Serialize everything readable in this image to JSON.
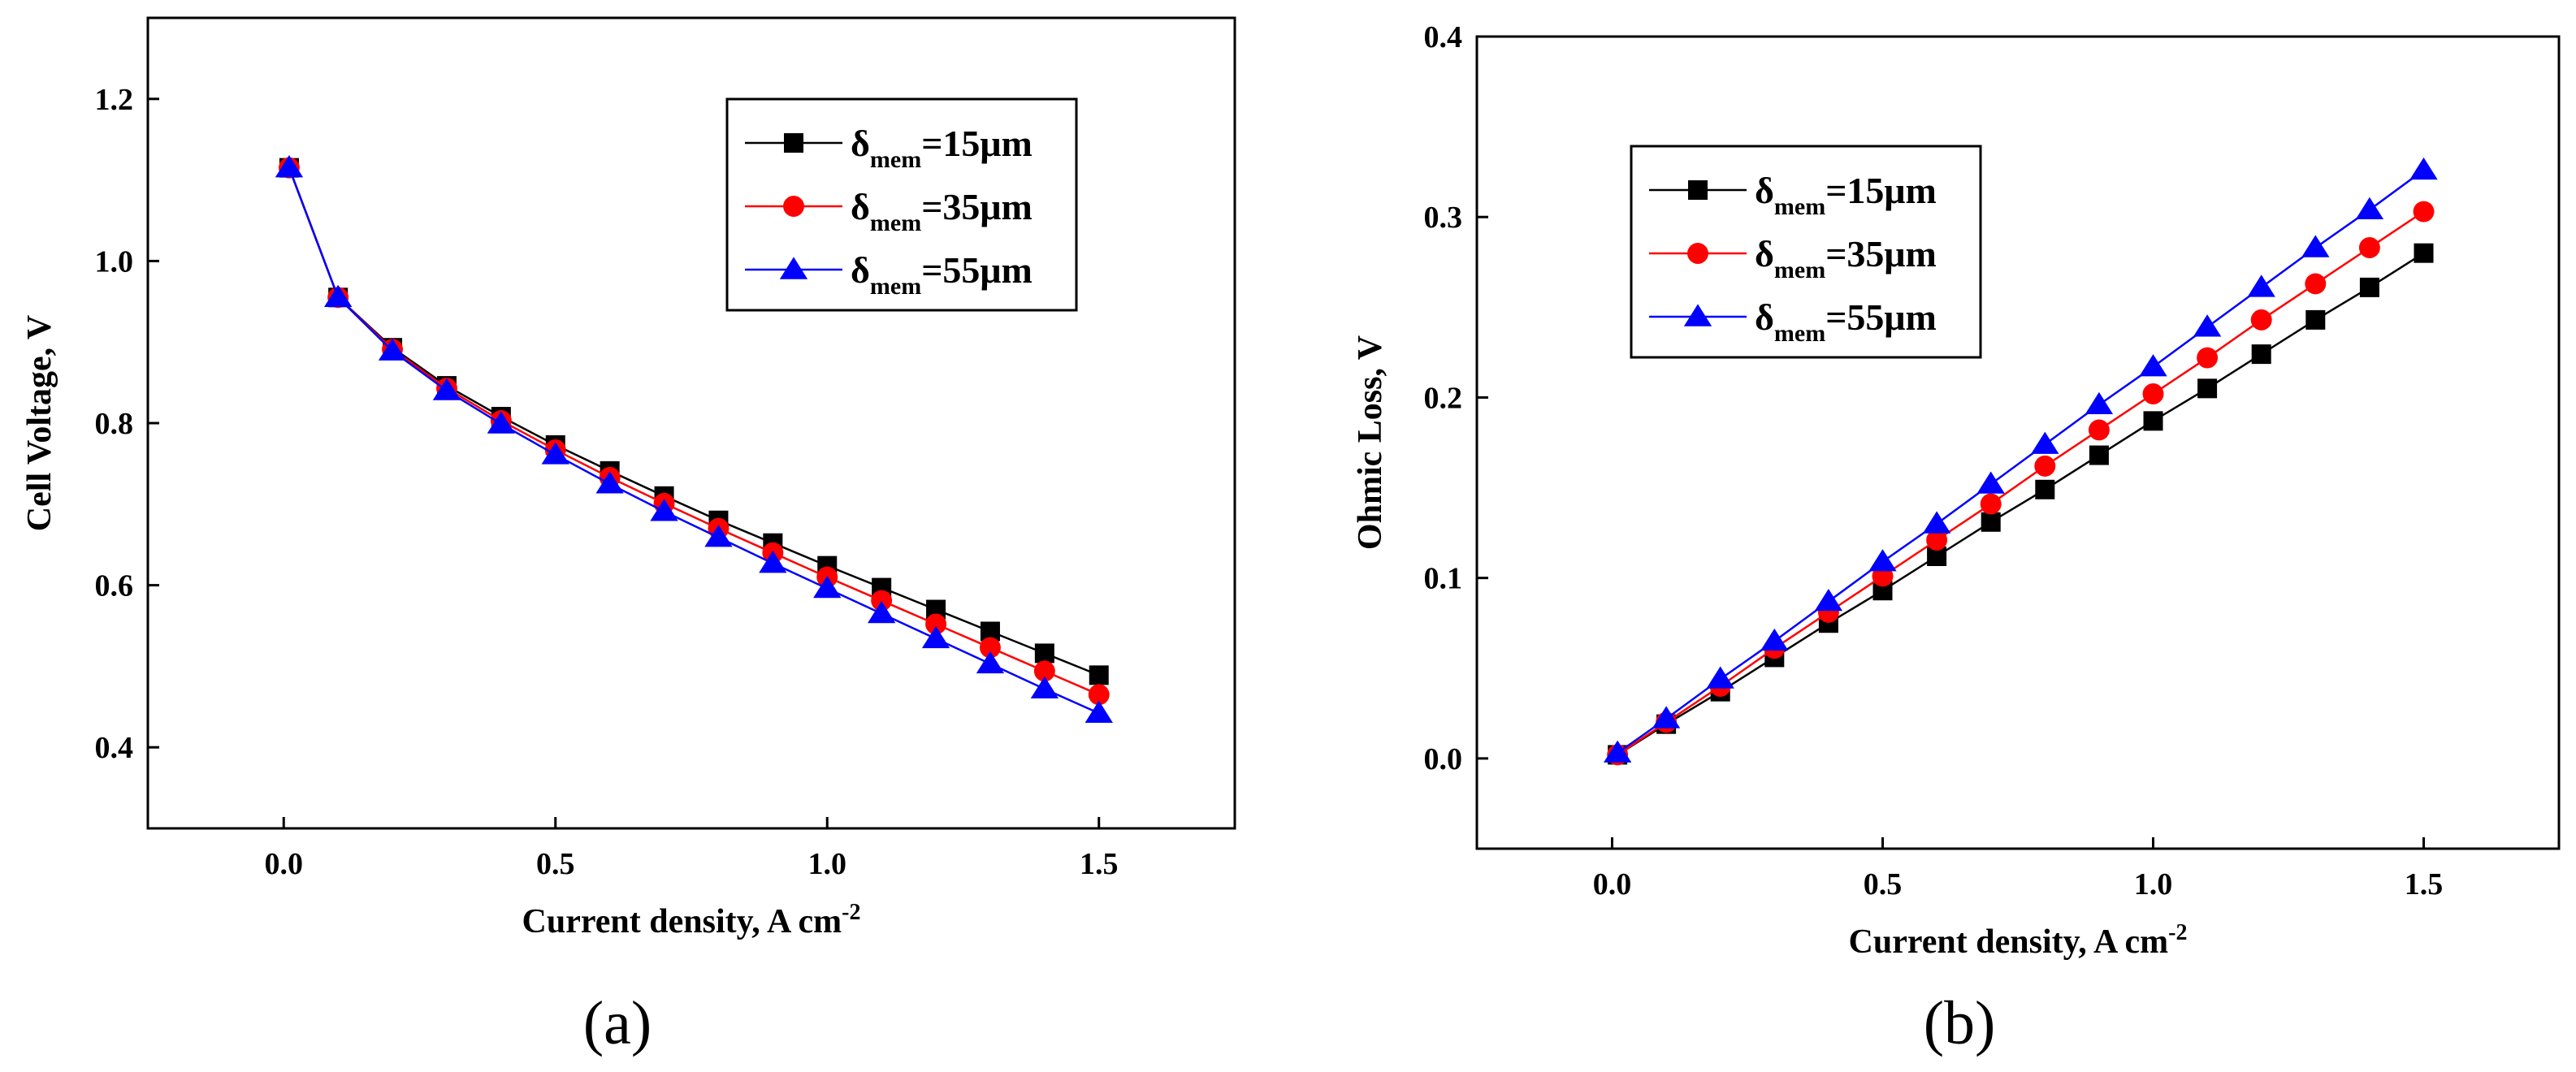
{
  "figure": {
    "panel_a_label": "(a)",
    "panel_b_label": "(b)"
  },
  "chart_data": [
    {
      "type": "line",
      "panel": "(a)",
      "title": "",
      "xlabel": "Current density, A cm",
      "xlabel_sup": "-2",
      "ylabel": "Cell Voltage, V",
      "xlim": [
        -0.25,
        1.75
      ],
      "ylim": [
        0.3,
        1.3
      ],
      "xticks": [
        0.0,
        0.5,
        1.0,
        1.5
      ],
      "xtick_labels": [
        "0.0",
        "0.5",
        "1.0",
        "1.5"
      ],
      "yticks": [
        0.4,
        0.6,
        0.8,
        1.0,
        1.2
      ],
      "ytick_labels": [
        "0.4",
        "0.6",
        "0.8",
        "1.0",
        "1.2"
      ],
      "legend_position": "top-right",
      "x": [
        0.01,
        0.1,
        0.2,
        0.3,
        0.4,
        0.5,
        0.6,
        0.7,
        0.8,
        0.9,
        1.0,
        1.1,
        1.2,
        1.3,
        1.4,
        1.5
      ],
      "series": [
        {
          "name": "δmem=15μm",
          "symbol": "δ",
          "subscript": "mem",
          "value_text": "=15μm",
          "color": "#000000",
          "marker": "square",
          "values": [
            1.115,
            0.955,
            0.893,
            0.846,
            0.808,
            0.773,
            0.741,
            0.71,
            0.68,
            0.652,
            0.624,
            0.597,
            0.57,
            0.543,
            0.516,
            0.489
          ]
        },
        {
          "name": "δmem=35μm",
          "symbol": "δ",
          "subscript": "mem",
          "value_text": "=35μm",
          "color": "#ff0000",
          "marker": "circle",
          "values": [
            1.115,
            0.955,
            0.891,
            0.843,
            0.803,
            0.767,
            0.733,
            0.701,
            0.67,
            0.64,
            0.61,
            0.581,
            0.552,
            0.523,
            0.494,
            0.465
          ]
        },
        {
          "name": "δmem=55μm",
          "symbol": "δ",
          "subscript": "mem",
          "value_text": "=55μm",
          "color": "#0000ff",
          "marker": "triangle",
          "values": [
            1.115,
            0.955,
            0.889,
            0.84,
            0.799,
            0.761,
            0.725,
            0.691,
            0.659,
            0.627,
            0.596,
            0.565,
            0.534,
            0.503,
            0.472,
            0.442
          ]
        }
      ]
    },
    {
      "type": "line",
      "panel": "(b)",
      "title": "",
      "xlabel": "Current density, A cm",
      "xlabel_sup": "-2",
      "ylabel": "Ohmic Loss, V",
      "xlim": [
        -0.25,
        1.75
      ],
      "ylim": [
        -0.05,
        0.4
      ],
      "xticks": [
        0.0,
        0.5,
        1.0,
        1.5
      ],
      "xtick_labels": [
        "0.0",
        "0.5",
        "1.0",
        "1.5"
      ],
      "yticks": [
        0.0,
        0.1,
        0.2,
        0.3,
        0.4
      ],
      "ytick_labels": [
        "0.0",
        "0.1",
        "0.2",
        "0.3",
        "0.4"
      ],
      "legend_position": "top-left",
      "x": [
        0.01,
        0.1,
        0.2,
        0.3,
        0.4,
        0.5,
        0.6,
        0.7,
        0.8,
        0.9,
        1.0,
        1.1,
        1.2,
        1.3,
        1.4,
        1.5
      ],
      "series": [
        {
          "name": "δmem=15μm",
          "symbol": "δ",
          "subscript": "mem",
          "value_text": "=15μm",
          "color": "#000000",
          "marker": "square",
          "values": [
            0.002,
            0.019,
            0.037,
            0.056,
            0.075,
            0.093,
            0.112,
            0.131,
            0.149,
            0.168,
            0.187,
            0.205,
            0.224,
            0.243,
            0.261,
            0.28
          ]
        },
        {
          "name": "δmem=35μm",
          "symbol": "δ",
          "subscript": "mem",
          "value_text": "=35μm",
          "color": "#ff0000",
          "marker": "circle",
          "values": [
            0.002,
            0.02,
            0.04,
            0.061,
            0.081,
            0.101,
            0.121,
            0.141,
            0.162,
            0.182,
            0.202,
            0.222,
            0.243,
            0.263,
            0.283,
            0.303
          ]
        },
        {
          "name": "δmem=55μm",
          "symbol": "δ",
          "subscript": "mem",
          "value_text": "=55μm",
          "color": "#0000ff",
          "marker": "triangle",
          "values": [
            0.003,
            0.022,
            0.044,
            0.065,
            0.087,
            0.109,
            0.13,
            0.152,
            0.174,
            0.196,
            0.217,
            0.239,
            0.261,
            0.283,
            0.304,
            0.326
          ]
        }
      ]
    }
  ]
}
